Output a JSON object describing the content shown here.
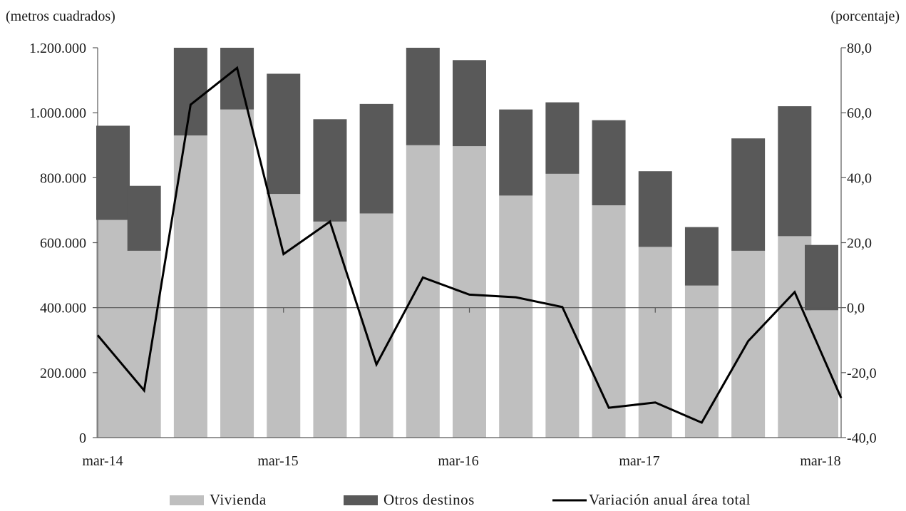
{
  "chart_data": {
    "type": "bar",
    "subtype": "stacked bar with line on secondary axis",
    "y_left_unit": "(metros cuadrados)",
    "y_right_unit": "(porcentaje)",
    "x_tick_labels": [
      "mar-14",
      "mar-15",
      "mar-16",
      "mar-17",
      "mar-18"
    ],
    "y_left_ticks": [
      "0",
      "200.000",
      "400.000",
      "600.000",
      "800.000",
      "1.000.000",
      "1.200.000"
    ],
    "y_right_ticks": [
      "-40,0",
      "-20,0",
      "0,0",
      "20,0",
      "40,0",
      "60,0",
      "80,0"
    ],
    "ylim_left": [
      0,
      1200000
    ],
    "ylim_right": [
      -40,
      80
    ],
    "categories": [
      "mar-14",
      "jun-14",
      "sep-14",
      "dic-14",
      "mar-15",
      "jun-15",
      "sep-15",
      "dic-15",
      "mar-16",
      "jun-16",
      "sep-16",
      "dic-16",
      "mar-17",
      "jun-17",
      "sep-17",
      "dic-17",
      "mar-18"
    ],
    "series": [
      {
        "name": "Vivienda",
        "type": "bar",
        "axis": "left",
        "color": "#bfbfbf",
        "values": [
          670000,
          575000,
          930000,
          1010000,
          750000,
          665000,
          690000,
          900000,
          897000,
          745000,
          812000,
          715000,
          587000,
          468000,
          575000,
          620000,
          392000
        ]
      },
      {
        "name": "Otros destinos",
        "type": "bar",
        "axis": "left",
        "color": "#595959",
        "values": [
          290000,
          200000,
          270000,
          190000,
          370000,
          315000,
          337000,
          300000,
          265000,
          265000,
          220000,
          262000,
          233000,
          180000,
          346000,
          400000,
          201000
        ]
      },
      {
        "name": "Variación anual área total",
        "type": "line",
        "axis": "right",
        "color": "#000000",
        "values": [
          -8.5,
          -25.5,
          62.5,
          73.8,
          16.5,
          26.5,
          -17.5,
          9.3,
          4.0,
          3.2,
          0.2,
          -30.8,
          -29.2,
          -35.4,
          -10.3,
          4.8,
          -27.8
        ]
      }
    ],
    "grid": false,
    "legend_position": "bottom"
  }
}
